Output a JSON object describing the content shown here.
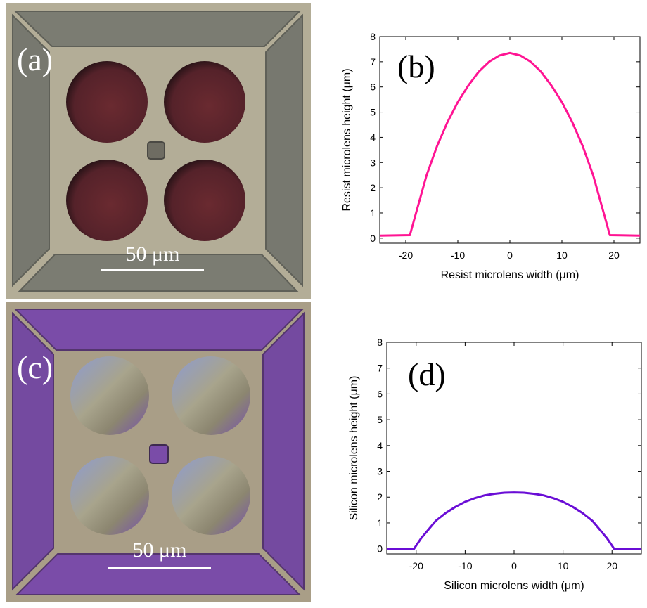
{
  "panels": {
    "a": {
      "label": "(a)",
      "scale_bar": "50 μm"
    },
    "b": {
      "label": "(b)"
    },
    "c": {
      "label": "(c)",
      "scale_bar": "50 μm"
    },
    "d": {
      "label": "(d)"
    }
  },
  "colors": {
    "resist_curve": "#ff1493",
    "silicon_curve": "#6a0dd6",
    "resist_frame": "#7b7c72",
    "resist_lens": "#5a1c22",
    "silicon_frame": "#7a4ca8",
    "silicon_lens": "#8a9ac6",
    "substrate": "#b3ad97"
  },
  "chart_data": [
    {
      "type": "line",
      "ylabel": "Resist microlens height (μm)",
      "xlabel": "Resist microlens width (μm)",
      "xlim": [
        -25,
        25
      ],
      "ylim": [
        -0.2,
        8
      ],
      "xticks": [
        -20,
        -10,
        0,
        10,
        20
      ],
      "yticks": [
        0,
        1,
        2,
        3,
        4,
        5,
        6,
        7,
        8
      ],
      "series": [
        {
          "x": [
            -25,
            -19.2,
            -18.5,
            -16,
            -14,
            -12,
            -10,
            -8,
            -6,
            -4,
            -2,
            0,
            2,
            4,
            6,
            8,
            10,
            12,
            14,
            16,
            18.5,
            19.2,
            25
          ],
          "y": [
            0.1,
            0.12,
            0.65,
            2.5,
            3.65,
            4.6,
            5.4,
            6.05,
            6.6,
            7.0,
            7.25,
            7.35,
            7.25,
            7.0,
            6.6,
            6.05,
            5.4,
            4.6,
            3.65,
            2.5,
            0.65,
            0.12,
            0.1
          ]
        }
      ]
    },
    {
      "type": "line",
      "ylabel": "Silicon microlens height (μm)",
      "xlabel": "Silicon microlens width (μm)",
      "xlim": [
        -26,
        26
      ],
      "ylim": [
        -0.2,
        8
      ],
      "xticks": [
        -20,
        -10,
        0,
        10,
        20
      ],
      "yticks": [
        0,
        1,
        2,
        3,
        4,
        5,
        6,
        7,
        8
      ],
      "series": [
        {
          "x": [
            -26,
            -20.5,
            -19,
            -16,
            -14,
            -12,
            -10,
            -8,
            -6,
            -4,
            -2,
            0,
            2,
            4,
            6,
            8,
            10,
            12,
            14,
            16,
            19,
            20.5,
            26
          ],
          "y": [
            0.0,
            -0.02,
            0.4,
            1.08,
            1.38,
            1.62,
            1.82,
            1.96,
            2.07,
            2.13,
            2.17,
            2.18,
            2.17,
            2.13,
            2.07,
            1.96,
            1.82,
            1.62,
            1.38,
            1.08,
            0.4,
            -0.02,
            0.0
          ]
        }
      ]
    }
  ]
}
